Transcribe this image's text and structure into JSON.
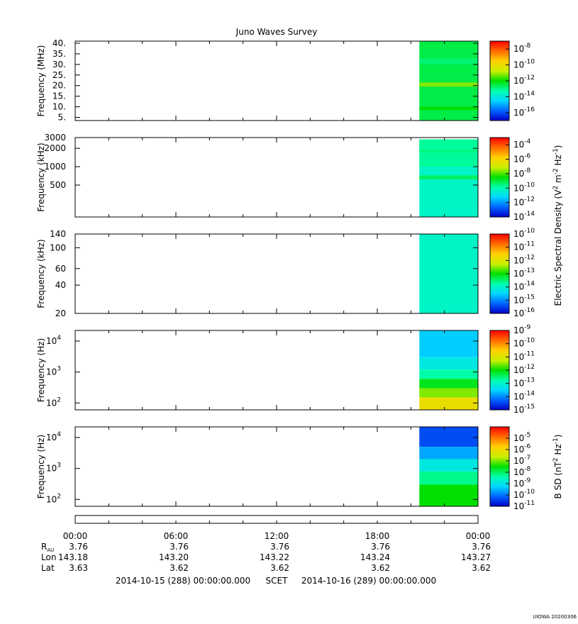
{
  "chart_data": {
    "type": "heatmap",
    "title": "Juno Waves Survey",
    "colormap": [
      "#0000c8",
      "#0060ff",
      "#00d8ff",
      "#00ffb0",
      "#00e000",
      "#c8f000",
      "#ffd000",
      "#ff7000",
      "#ff0000"
    ],
    "time_range": [
      "2014-10-15 00:00",
      "2014-10-16 00:00"
    ],
    "x_ticks": [
      "00:00",
      "06:00",
      "12:00",
      "18:00",
      "00:00"
    ],
    "data_start": "2014-10-15 20:30",
    "panels": [
      {
        "ylabel": "Frequency (MHz)",
        "yscale": "linear",
        "ylim": [
          3.5,
          41
        ],
        "yticks": [
          {
            "v": 40,
            "t": "40."
          },
          {
            "v": 35,
            "t": "35."
          },
          {
            "v": 30,
            "t": "30."
          },
          {
            "v": 25,
            "t": "25."
          },
          {
            "v": 20,
            "t": "20."
          },
          {
            "v": 15,
            "t": "15."
          },
          {
            "v": 10,
            "t": "10."
          },
          {
            "v": 5,
            "t": "5."
          }
        ],
        "colorbar": {
          "ticks": [
            {
              "e": "-8"
            },
            {
              "e": "-10"
            },
            {
              "e": "-12"
            },
            {
              "e": "-14"
            },
            {
              "e": "-16"
            }
          ],
          "range_exp": [
            -17,
            -7
          ]
        },
        "bands": [
          {
            "y0": 3.5,
            "y1": 41,
            "level": 0.45
          },
          {
            "y0": 19.5,
            "y1": 21.5,
            "level": 0.58
          },
          {
            "y0": 8.5,
            "y1": 10,
            "level": 0.5
          },
          {
            "y0": 30,
            "y1": 33,
            "level": 0.42
          }
        ]
      },
      {
        "ylabel": "Frequency (kHz)",
        "yscale": "log",
        "ylim": [
          150,
          3000
        ],
        "yticks": [
          {
            "v": 3000,
            "t": "3000"
          },
          {
            "v": 2000,
            "t": "2000"
          },
          {
            "v": 1000,
            "t": "1000"
          },
          {
            "v": 500,
            "t": "500"
          }
        ],
        "colorbar": {
          "ticks": [
            {
              "e": "-4"
            },
            {
              "e": "-6"
            },
            {
              "e": "-8"
            },
            {
              "e": "-10"
            },
            {
              "e": "-12"
            },
            {
              "e": "-14"
            }
          ],
          "range_exp": [
            -14,
            -3
          ]
        },
        "bands": [
          {
            "y0": 150,
            "y1": 2800,
            "level": 0.34
          },
          {
            "y0": 1000,
            "y1": 2800,
            "level": 0.39
          },
          {
            "y0": 1700,
            "y1": 1900,
            "level": 0.41
          },
          {
            "y0": 620,
            "y1": 720,
            "level": 0.43
          }
        ]
      },
      {
        "ylabel": "Frequency (kHz)",
        "yscale": "log",
        "ylim": [
          20,
          140
        ],
        "yticks": [
          {
            "v": 140,
            "t": "140"
          },
          {
            "v": 100,
            "t": "100"
          },
          {
            "v": 60,
            "t": "60"
          },
          {
            "v": 40,
            "t": "40"
          },
          {
            "v": 20,
            "t": "20"
          }
        ],
        "colorbar": {
          "ticks": [
            {
              "e": "-10"
            },
            {
              "e": "-11"
            },
            {
              "e": "-12"
            },
            {
              "e": "-13"
            },
            {
              "e": "-14"
            },
            {
              "e": "-15"
            },
            {
              "e": "-16"
            }
          ],
          "range_exp": [
            -16,
            -10
          ]
        },
        "bands": [
          {
            "y0": 20,
            "y1": 140,
            "level": 0.34
          }
        ]
      },
      {
        "ylabel": "Frequency (Hz)",
        "yscale": "log",
        "ylim": [
          60,
          22000
        ],
        "yticks": [
          {
            "v": 10000,
            "t": "10",
            "e": "4"
          },
          {
            "v": 1000,
            "t": "10",
            "e": "3"
          },
          {
            "v": 100,
            "t": "10",
            "e": "2"
          }
        ],
        "colorbar": {
          "ticks": [
            {
              "e": "-9"
            },
            {
              "e": "-10"
            },
            {
              "e": "-11"
            },
            {
              "e": "-12"
            },
            {
              "e": "-13"
            },
            {
              "e": "-14"
            },
            {
              "e": "-15"
            }
          ],
          "range_exp": [
            -15,
            -9
          ]
        },
        "bands": [
          {
            "y0": 3000,
            "y1": 22000,
            "level": 0.24
          },
          {
            "y0": 1200,
            "y1": 3000,
            "level": 0.3
          },
          {
            "y0": 600,
            "y1": 1200,
            "level": 0.38
          },
          {
            "y0": 300,
            "y1": 600,
            "level": 0.48
          },
          {
            "y0": 150,
            "y1": 300,
            "level": 0.58
          },
          {
            "y0": 60,
            "y1": 150,
            "level": 0.7
          }
        ]
      },
      {
        "ylabel": "Frequency (Hz)",
        "yscale": "log",
        "ylim": [
          60,
          22000
        ],
        "yticks": [
          {
            "v": 10000,
            "t": "10",
            "e": "4"
          },
          {
            "v": 1000,
            "t": "10",
            "e": "3"
          },
          {
            "v": 100,
            "t": "10",
            "e": "2"
          }
        ],
        "colorbar": {
          "ticks": [
            {
              "e": "-5"
            },
            {
              "e": "-6"
            },
            {
              "e": "-7"
            },
            {
              "e": "-8"
            },
            {
              "e": "-9"
            },
            {
              "e": "-10"
            },
            {
              "e": "-11"
            }
          ],
          "range_exp": [
            -11,
            -4
          ]
        },
        "bands": [
          {
            "y0": 5000,
            "y1": 22000,
            "level": 0.1
          },
          {
            "y0": 2000,
            "y1": 5000,
            "level": 0.2
          },
          {
            "y0": 800,
            "y1": 2000,
            "level": 0.3
          },
          {
            "y0": 300,
            "y1": 800,
            "level": 0.4
          },
          {
            "y0": 60,
            "y1": 300,
            "level": 0.5
          }
        ]
      }
    ],
    "colorbar_labels": [
      {
        "text": "Electric Spectral Density (V",
        "sup1": "2",
        "mid": " m",
        "sup2": "-2",
        "end": " Hz",
        "sup3": "-1",
        "close": ")"
      },
      {
        "text": "B SD (nT",
        "sup1": "2",
        "mid": " Hz",
        "sup2": "-1",
        "close": ")"
      }
    ],
    "ephemeris": {
      "rows": [
        {
          "label": "R",
          "sub": "AU",
          "values": [
            "3.76",
            "3.76",
            "3.76",
            "3.76",
            "3.76"
          ]
        },
        {
          "label": "Lon",
          "values": [
            "143.18",
            "143.20",
            "143.22",
            "143.24",
            "143.27"
          ]
        },
        {
          "label": "Lat",
          "values": [
            "3.63",
            "3.62",
            "3.62",
            "3.62",
            "3.62"
          ]
        }
      ]
    },
    "footer": {
      "start": "2014-10-15 (288) 00:00:00.000",
      "mid": "SCET",
      "end": "2014-10-16 (289) 00:00:00.000"
    },
    "stamp": "UIOWA 20200306"
  }
}
